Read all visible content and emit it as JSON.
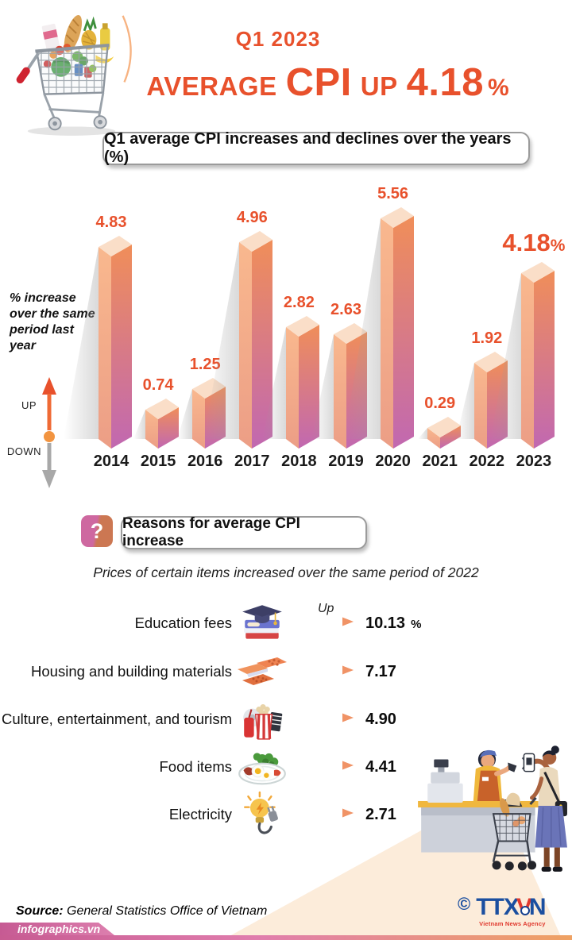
{
  "header": {
    "kicker": "Q1 2023",
    "title_average": "AVERAGE",
    "title_cpi": "CPI",
    "title_up": "UP",
    "title_value": "4.18",
    "title_pct": "%"
  },
  "chart": {
    "title": "Q1 average CPI increases and declines over the years (%)",
    "axis_note": "% increase over the same period last year",
    "up_label": "UP",
    "down_label": "DOWN"
  },
  "chart_data": {
    "type": "bar",
    "title": "Q1 average CPI increases and declines over the years (%)",
    "categories": [
      "2014",
      "2015",
      "2016",
      "2017",
      "2018",
      "2019",
      "2020",
      "2021",
      "2022",
      "2023"
    ],
    "values": [
      4.83,
      0.74,
      1.25,
      4.96,
      2.82,
      2.63,
      5.56,
      0.29,
      1.92,
      4.18
    ],
    "unit": "%",
    "ylabel": "% increase over the same period last year",
    "ylim": [
      0,
      6
    ],
    "grid": false,
    "highlight_index": 9,
    "highlight_label": "4.18%",
    "bar_colors": {
      "top": "#fadec8",
      "front_top": "#f9b88e",
      "front_bottom": "#ec9e86",
      "side_top": "#f08e59",
      "side_bottom": "#c168b1"
    },
    "value_label_color": "#e8512c"
  },
  "reasons": {
    "icon_glyph": "?",
    "title": "Reasons for average CPI increase",
    "subtitle": "Prices of certain items increased over the same period of 2022",
    "up_label": "Up",
    "items": [
      {
        "label": "Education fees",
        "value": "10.13",
        "unit": "%"
      },
      {
        "label": "Housing and building materials",
        "value": "7.17",
        "unit": ""
      },
      {
        "label": "Culture, entertainment, and tourism",
        "value": "4.90",
        "unit": ""
      },
      {
        "label": "Food items",
        "value": "4.41",
        "unit": ""
      },
      {
        "label": "Electricity",
        "value": "2.71",
        "unit": ""
      }
    ]
  },
  "footer": {
    "source_label": "Source:",
    "source_text": " General Statistics Office of Vietnam",
    "site": "infographics.vn",
    "copyright": "©",
    "agency_t1": "TTX",
    "agency_t2": "V",
    "agency_t3": "N",
    "agency_name": "Vietnam News Agency"
  },
  "colors": {
    "accent": "#e8512c",
    "footer_pink": "#c75b92",
    "footer_orange": "#efa263",
    "agency_blue": "#1b4fa0",
    "agency_red": "#e0392e"
  }
}
